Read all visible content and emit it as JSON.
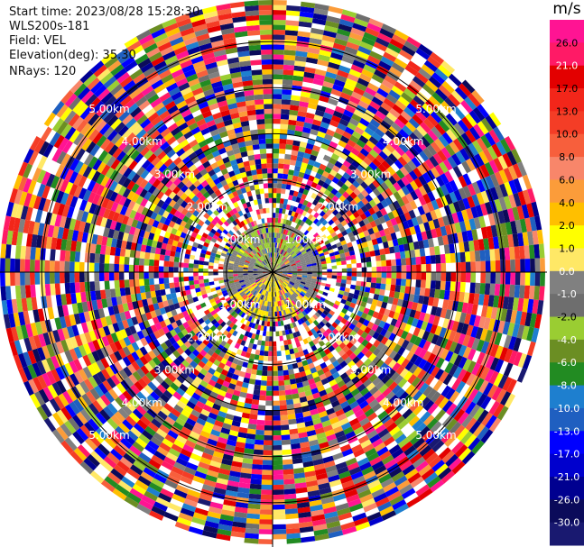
{
  "header": {
    "start_time": "Start time: 2023/08/28 15:28:30",
    "instrument": "WLS200s-181",
    "field": "Field: VEL",
    "elevation": "Elevation(deg): 35.30",
    "nrays": "NRays: 120"
  },
  "chart_data": {
    "type": "heatmap",
    "projection": "polar PPI",
    "field": "VEL",
    "nrays": 120,
    "range_rings_km": [
      1.0,
      2.0,
      3.0,
      4.0,
      5.0
    ],
    "ring_labels": [
      "1.00km",
      "2.00km",
      "3.00km",
      "4.00km",
      "5.00km"
    ],
    "max_range_km": 5.9,
    "colorbar": {
      "unit": "m/s",
      "ticks": [
        "26.0",
        "21.0",
        "17.0",
        "13.0",
        "10.0",
        "8.0",
        "6.0",
        "4.0",
        "2.0",
        "1.0",
        "0.0",
        "-1.0",
        "-2.0",
        "-4.0",
        "-6.0",
        "-8.0",
        "-10.0",
        "-13.0",
        "-17.0",
        "-21.0",
        "-26.0",
        "-30.0"
      ],
      "colors": [
        "#ff1493",
        "#ff1a66",
        "#e30000",
        "#f2261a",
        "#f43d26",
        "#f75f3c",
        "#f8866a",
        "#fb9c3a",
        "#ffbf00",
        "#ffff00",
        "#ffe866",
        "#808080",
        "#6e6e6e",
        "#9acd32",
        "#6b8e23",
        "#228b22",
        "#1e7fcf",
        "#1f5fc0",
        "#0000ff",
        "#0000cd",
        "#000090",
        "#0b0b5a",
        "#191970"
      ]
    }
  }
}
